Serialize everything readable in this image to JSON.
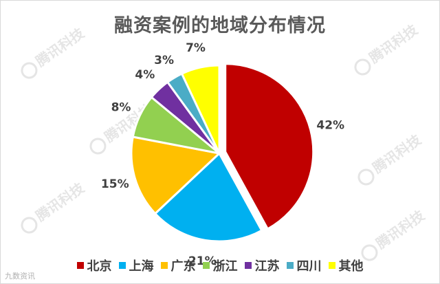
{
  "chart_data": {
    "type": "pie",
    "title": "融资案例的地域分布情况",
    "categories": [
      "北京",
      "上海",
      "广东",
      "浙江",
      "江苏",
      "四川",
      "其他"
    ],
    "values": [
      42,
      21,
      15,
      8,
      4,
      3,
      7
    ],
    "labels": [
      "42%",
      "21%",
      "15%",
      "8%",
      "4%",
      "3%",
      "7%"
    ],
    "colors": [
      "#c00000",
      "#00b0f0",
      "#ffc000",
      "#92d050",
      "#7030a0",
      "#4bacc6",
      "#ffff00"
    ],
    "legend_position": "bottom",
    "exploded_slice": "北京"
  },
  "watermark_text": "腾讯科技",
  "source_mark": "九数资讯"
}
